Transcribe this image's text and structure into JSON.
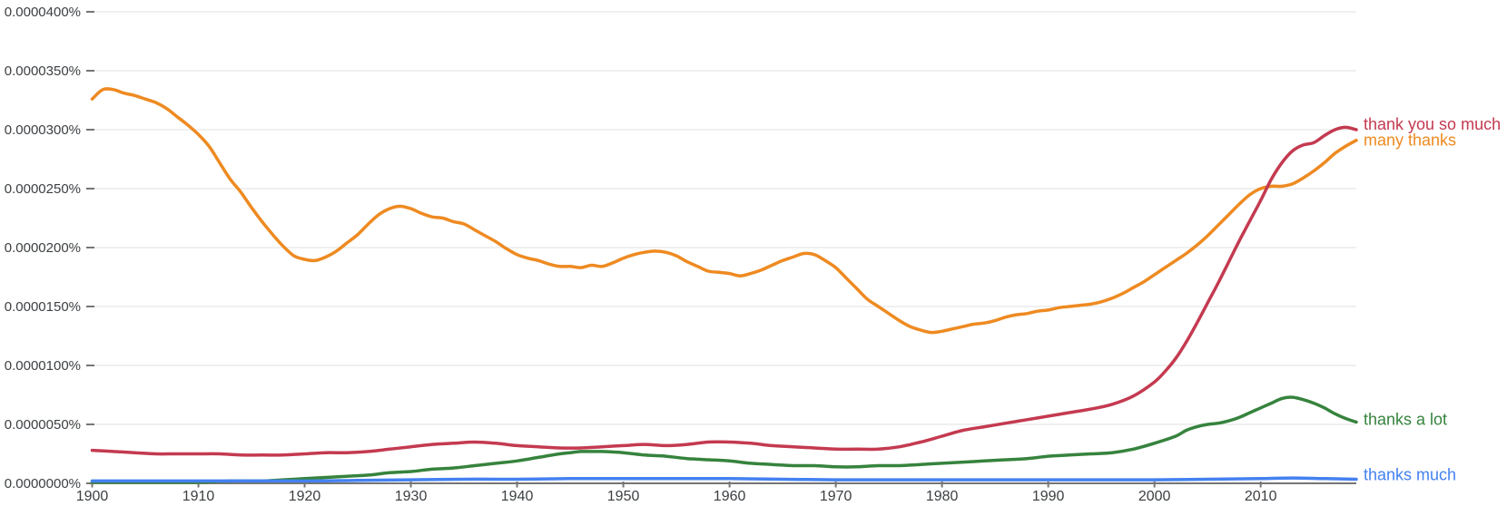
{
  "chart_data": {
    "type": "line",
    "title": "",
    "xlabel": "",
    "ylabel": "",
    "grid": true,
    "legend_position": "right-end-labels",
    "value_unit": "percent x 1e-7 (e.g. 328 = 0.0000328%)",
    "x_axis": {
      "ticks": [
        1900,
        1910,
        1920,
        1930,
        1940,
        1950,
        1960,
        1970,
        1980,
        1990,
        2000,
        2010
      ],
      "range": [
        1900,
        2019
      ]
    },
    "y_axis": {
      "range": [
        0,
        400
      ],
      "ticks": [
        {
          "value": 0,
          "label": "0.0000000%"
        },
        {
          "value": 50,
          "label": "0.0000050%"
        },
        {
          "value": 100,
          "label": "0.0000100%"
        },
        {
          "value": 150,
          "label": "0.0000150%"
        },
        {
          "value": 200,
          "label": "0.0000200%"
        },
        {
          "value": 250,
          "label": "0.0000250%"
        },
        {
          "value": 300,
          "label": "0.0000300%"
        },
        {
          "value": 350,
          "label": "0.0000350%"
        },
        {
          "value": 400,
          "label": "0.0000400%"
        }
      ]
    },
    "colors": {
      "grid": "#ebebeb",
      "axis": "#757575",
      "tick_text": "#3c4043",
      "background": "#ffffff"
    },
    "draw_order": [
      1,
      0,
      2,
      3
    ],
    "series": [
      {
        "name": "thank you so much",
        "color": "#c43a50",
        "points": [
          [
            1900,
            28
          ],
          [
            1902,
            27
          ],
          [
            1904,
            26
          ],
          [
            1906,
            25
          ],
          [
            1908,
            25
          ],
          [
            1910,
            25
          ],
          [
            1912,
            25
          ],
          [
            1914,
            24
          ],
          [
            1916,
            24
          ],
          [
            1918,
            24
          ],
          [
            1920,
            25
          ],
          [
            1922,
            26
          ],
          [
            1924,
            26
          ],
          [
            1926,
            27
          ],
          [
            1928,
            29
          ],
          [
            1930,
            31
          ],
          [
            1932,
            33
          ],
          [
            1934,
            34
          ],
          [
            1936,
            35
          ],
          [
            1938,
            34
          ],
          [
            1940,
            32
          ],
          [
            1942,
            31
          ],
          [
            1944,
            30
          ],
          [
            1946,
            30
          ],
          [
            1948,
            31
          ],
          [
            1950,
            32
          ],
          [
            1952,
            33
          ],
          [
            1954,
            32
          ],
          [
            1956,
            33
          ],
          [
            1958,
            35
          ],
          [
            1960,
            35
          ],
          [
            1962,
            34
          ],
          [
            1964,
            32
          ],
          [
            1966,
            31
          ],
          [
            1968,
            30
          ],
          [
            1970,
            29
          ],
          [
            1972,
            29
          ],
          [
            1974,
            29
          ],
          [
            1976,
            31
          ],
          [
            1978,
            35
          ],
          [
            1980,
            40
          ],
          [
            1982,
            45
          ],
          [
            1984,
            48
          ],
          [
            1986,
            51
          ],
          [
            1988,
            54
          ],
          [
            1990,
            57
          ],
          [
            1992,
            60
          ],
          [
            1994,
            63
          ],
          [
            1996,
            67
          ],
          [
            1998,
            74
          ],
          [
            2000,
            86
          ],
          [
            2001,
            95
          ],
          [
            2002,
            106
          ],
          [
            2003,
            120
          ],
          [
            2004,
            136
          ],
          [
            2005,
            153
          ],
          [
            2006,
            170
          ],
          [
            2007,
            188
          ],
          [
            2008,
            206
          ],
          [
            2009,
            223
          ],
          [
            2010,
            240
          ],
          [
            2011,
            258
          ],
          [
            2012,
            272
          ],
          [
            2013,
            282
          ],
          [
            2014,
            287
          ],
          [
            2015,
            289
          ],
          [
            2016,
            295
          ],
          [
            2017,
            300
          ],
          [
            2018,
            302
          ],
          [
            2019,
            300
          ]
        ]
      },
      {
        "name": "many thanks",
        "color": "#ee8a21",
        "points": [
          [
            1900,
            326
          ],
          [
            1901,
            334
          ],
          [
            1902,
            334
          ],
          [
            1903,
            331
          ],
          [
            1904,
            329
          ],
          [
            1905,
            326
          ],
          [
            1906,
            323
          ],
          [
            1907,
            318
          ],
          [
            1908,
            311
          ],
          [
            1909,
            304
          ],
          [
            1910,
            296
          ],
          [
            1911,
            286
          ],
          [
            1912,
            272
          ],
          [
            1913,
            258
          ],
          [
            1914,
            247
          ],
          [
            1915,
            234
          ],
          [
            1916,
            222
          ],
          [
            1917,
            211
          ],
          [
            1918,
            201
          ],
          [
            1919,
            193
          ],
          [
            1920,
            190
          ],
          [
            1921,
            189
          ],
          [
            1922,
            192
          ],
          [
            1923,
            197
          ],
          [
            1924,
            204
          ],
          [
            1925,
            211
          ],
          [
            1926,
            220
          ],
          [
            1927,
            228
          ],
          [
            1928,
            233
          ],
          [
            1929,
            235
          ],
          [
            1930,
            233
          ],
          [
            1931,
            229
          ],
          [
            1932,
            226
          ],
          [
            1933,
            225
          ],
          [
            1934,
            222
          ],
          [
            1935,
            220
          ],
          [
            1936,
            215
          ],
          [
            1937,
            210
          ],
          [
            1938,
            205
          ],
          [
            1939,
            199
          ],
          [
            1940,
            194
          ],
          [
            1941,
            191
          ],
          [
            1942,
            189
          ],
          [
            1943,
            186
          ],
          [
            1944,
            184
          ],
          [
            1945,
            184
          ],
          [
            1946,
            183
          ],
          [
            1947,
            185
          ],
          [
            1948,
            184
          ],
          [
            1949,
            187
          ],
          [
            1950,
            191
          ],
          [
            1951,
            194
          ],
          [
            1952,
            196
          ],
          [
            1953,
            197
          ],
          [
            1954,
            196
          ],
          [
            1955,
            193
          ],
          [
            1956,
            188
          ],
          [
            1957,
            184
          ],
          [
            1958,
            180
          ],
          [
            1959,
            179
          ],
          [
            1960,
            178
          ],
          [
            1961,
            176
          ],
          [
            1962,
            178
          ],
          [
            1963,
            181
          ],
          [
            1964,
            185
          ],
          [
            1965,
            189
          ],
          [
            1966,
            192
          ],
          [
            1967,
            195
          ],
          [
            1968,
            194
          ],
          [
            1969,
            189
          ],
          [
            1970,
            183
          ],
          [
            1971,
            174
          ],
          [
            1972,
            165
          ],
          [
            1973,
            156
          ],
          [
            1974,
            150
          ],
          [
            1975,
            144
          ],
          [
            1976,
            138
          ],
          [
            1977,
            133
          ],
          [
            1978,
            130
          ],
          [
            1979,
            128
          ],
          [
            1980,
            129
          ],
          [
            1981,
            131
          ],
          [
            1982,
            133
          ],
          [
            1983,
            135
          ],
          [
            1984,
            136
          ],
          [
            1985,
            138
          ],
          [
            1986,
            141
          ],
          [
            1987,
            143
          ],
          [
            1988,
            144
          ],
          [
            1989,
            146
          ],
          [
            1990,
            147
          ],
          [
            1991,
            149
          ],
          [
            1992,
            150
          ],
          [
            1993,
            151
          ],
          [
            1994,
            152
          ],
          [
            1995,
            154
          ],
          [
            1996,
            157
          ],
          [
            1997,
            161
          ],
          [
            1998,
            166
          ],
          [
            1999,
            171
          ],
          [
            2000,
            177
          ],
          [
            2001,
            183
          ],
          [
            2002,
            189
          ],
          [
            2003,
            195
          ],
          [
            2004,
            202
          ],
          [
            2005,
            210
          ],
          [
            2006,
            219
          ],
          [
            2007,
            228
          ],
          [
            2008,
            237
          ],
          [
            2009,
            245
          ],
          [
            2010,
            250
          ],
          [
            2011,
            252
          ],
          [
            2012,
            252
          ],
          [
            2013,
            254
          ],
          [
            2014,
            259
          ],
          [
            2015,
            265
          ],
          [
            2016,
            272
          ],
          [
            2017,
            280
          ],
          [
            2018,
            286
          ],
          [
            2019,
            291
          ]
        ]
      },
      {
        "name": "thanks a lot",
        "color": "#36833d",
        "points": [
          [
            1900,
            1
          ],
          [
            1905,
            1
          ],
          [
            1910,
            1
          ],
          [
            1913,
            2
          ],
          [
            1916,
            2
          ],
          [
            1918,
            3
          ],
          [
            1920,
            4
          ],
          [
            1922,
            5
          ],
          [
            1924,
            6
          ],
          [
            1926,
            7
          ],
          [
            1928,
            9
          ],
          [
            1930,
            10
          ],
          [
            1932,
            12
          ],
          [
            1934,
            13
          ],
          [
            1936,
            15
          ],
          [
            1938,
            17
          ],
          [
            1940,
            19
          ],
          [
            1942,
            22
          ],
          [
            1944,
            25
          ],
          [
            1945,
            26
          ],
          [
            1946,
            27
          ],
          [
            1947,
            27
          ],
          [
            1948,
            27
          ],
          [
            1950,
            26
          ],
          [
            1952,
            24
          ],
          [
            1954,
            23
          ],
          [
            1956,
            21
          ],
          [
            1958,
            20
          ],
          [
            1960,
            19
          ],
          [
            1962,
            17
          ],
          [
            1964,
            16
          ],
          [
            1966,
            15
          ],
          [
            1968,
            15
          ],
          [
            1970,
            14
          ],
          [
            1972,
            14
          ],
          [
            1974,
            15
          ],
          [
            1976,
            15
          ],
          [
            1978,
            16
          ],
          [
            1980,
            17
          ],
          [
            1982,
            18
          ],
          [
            1984,
            19
          ],
          [
            1986,
            20
          ],
          [
            1988,
            21
          ],
          [
            1990,
            23
          ],
          [
            1992,
            24
          ],
          [
            1994,
            25
          ],
          [
            1996,
            26
          ],
          [
            1998,
            29
          ],
          [
            2000,
            34
          ],
          [
            2002,
            40
          ],
          [
            2003,
            45
          ],
          [
            2004,
            48
          ],
          [
            2005,
            50
          ],
          [
            2006,
            51
          ],
          [
            2007,
            53
          ],
          [
            2008,
            56
          ],
          [
            2009,
            60
          ],
          [
            2010,
            64
          ],
          [
            2011,
            68
          ],
          [
            2012,
            72
          ],
          [
            2013,
            73
          ],
          [
            2014,
            71
          ],
          [
            2015,
            68
          ],
          [
            2016,
            64
          ],
          [
            2017,
            59
          ],
          [
            2018,
            55
          ],
          [
            2019,
            52
          ]
        ]
      },
      {
        "name": "thanks much",
        "color": "#4481f0",
        "points": [
          [
            1900,
            2
          ],
          [
            1910,
            2
          ],
          [
            1920,
            2
          ],
          [
            1925,
            2.5
          ],
          [
            1930,
            3
          ],
          [
            1935,
            3.5
          ],
          [
            1940,
            3.5
          ],
          [
            1945,
            4
          ],
          [
            1950,
            4
          ],
          [
            1955,
            4
          ],
          [
            1960,
            4
          ],
          [
            1965,
            3.5
          ],
          [
            1970,
            3
          ],
          [
            1975,
            3
          ],
          [
            1980,
            3
          ],
          [
            1985,
            3
          ],
          [
            1990,
            3
          ],
          [
            1995,
            3
          ],
          [
            2000,
            3
          ],
          [
            2005,
            3.5
          ],
          [
            2010,
            4
          ],
          [
            2013,
            4.5
          ],
          [
            2016,
            4
          ],
          [
            2019,
            3.5
          ]
        ]
      }
    ]
  }
}
